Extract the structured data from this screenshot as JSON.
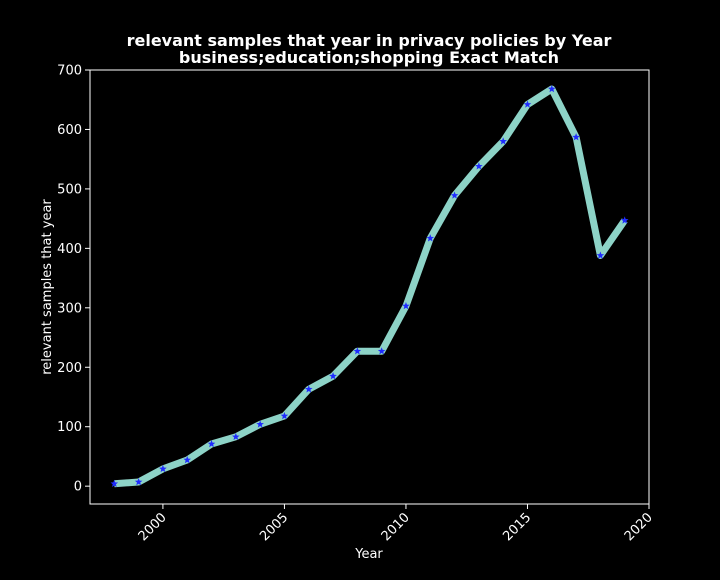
{
  "chart_data": {
    "type": "line",
    "title": "relevant samples that year in privacy policies by Year",
    "subtitle": "business;education;shopping Exact Match",
    "xlabel": "Year",
    "ylabel": "relevant samples that year",
    "xlim": [
      1997,
      2020
    ],
    "ylim": [
      -30,
      700
    ],
    "xticks": [
      2000,
      2005,
      2010,
      2015,
      2020
    ],
    "yticks": [
      0,
      100,
      200,
      300,
      400,
      500,
      600,
      700
    ],
    "grid": false,
    "legend": "none",
    "colors": {
      "background": "#000000",
      "line": "#8dd3c7",
      "marker": "#1f2bff",
      "text": "#ffffff"
    },
    "series": [
      {
        "x": [
          1998,
          1999,
          2000,
          2001,
          2002,
          2003,
          2004,
          2005,
          2006,
          2007,
          2008,
          2009,
          2010,
          2011,
          2012,
          2013,
          2014,
          2015,
          2016,
          2017,
          2018,
          2019
        ],
        "values": [
          4,
          7,
          29,
          44,
          71,
          83,
          104,
          118,
          163,
          185,
          227,
          227,
          303,
          417,
          489,
          538,
          580,
          642,
          668,
          587,
          388,
          447
        ]
      }
    ]
  }
}
